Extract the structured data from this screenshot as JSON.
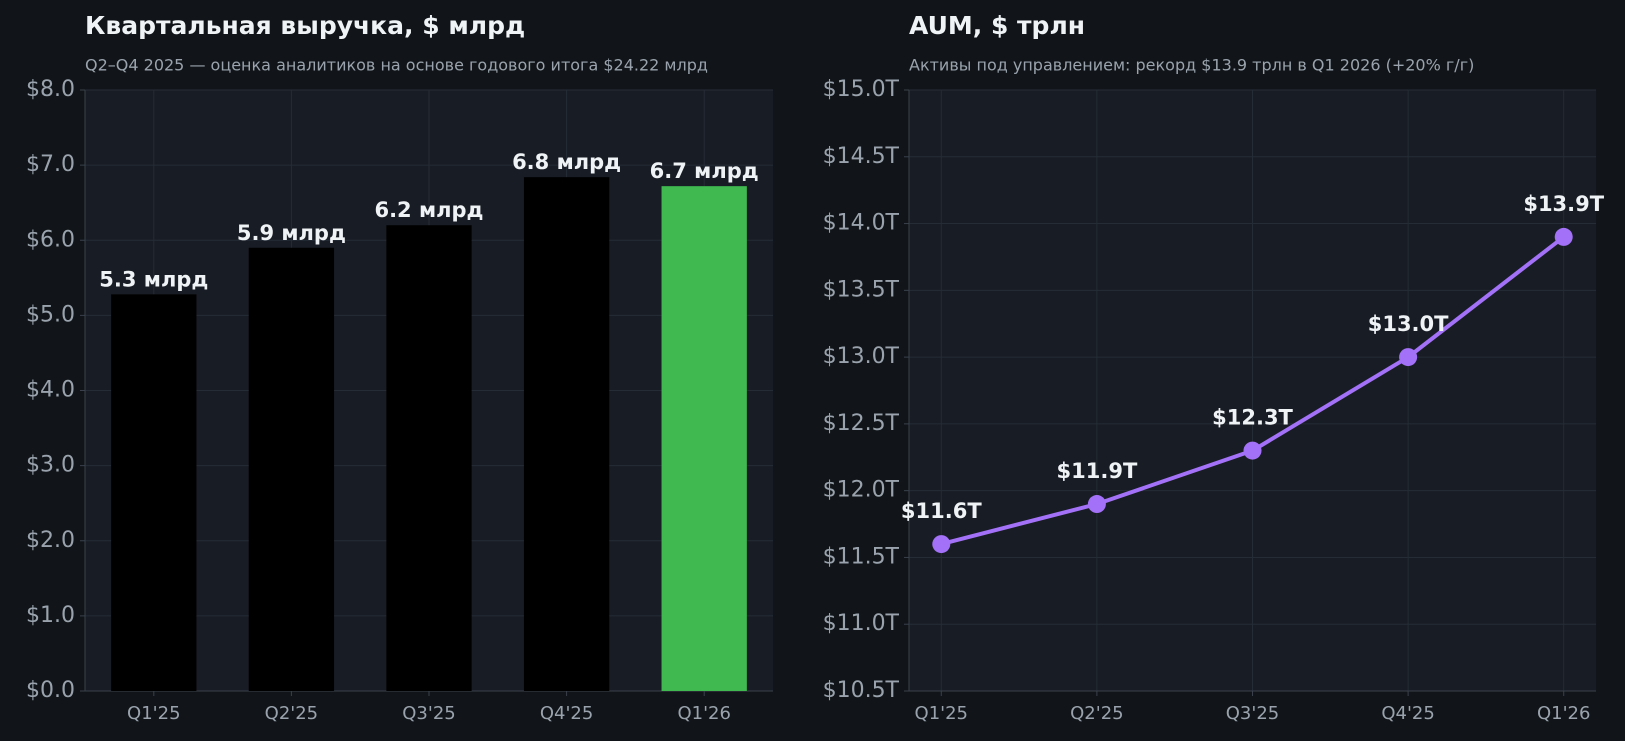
{
  "chart_data": [
    {
      "type": "bar",
      "title": "Квартальная выручка, $ млрд",
      "subtitle": "Q2–Q4 2025 — оценка аналитиков на основе годового итога $24.22 млрд",
      "categories": [
        "Q1'25",
        "Q2'25",
        "Q3'25",
        "Q4'25",
        "Q1'26"
      ],
      "values": [
        5.28,
        5.9,
        6.2,
        6.84,
        6.72
      ],
      "value_labels": [
        "5.3 млрд",
        "5.9 млрд",
        "6.2 млрд",
        "6.8 млрд",
        "6.7 млрд"
      ],
      "colors": [
        "#000000",
        "#000000",
        "#000000",
        "#000000",
        "#3fb950"
      ],
      "ylim": [
        0,
        8
      ],
      "yticks": [
        {
          "value": 0,
          "label": "$0.0"
        },
        {
          "value": 1,
          "label": "$1.0"
        },
        {
          "value": 2,
          "label": "$2.0"
        },
        {
          "value": 3,
          "label": "$3.0"
        },
        {
          "value": 4,
          "label": "$4.0"
        },
        {
          "value": 5,
          "label": "$5.0"
        },
        {
          "value": 6,
          "label": "$6.0"
        },
        {
          "value": 7,
          "label": "$7.0"
        },
        {
          "value": 8,
          "label": "$8.0"
        }
      ],
      "grid": true
    },
    {
      "type": "line",
      "title": "AUM, $ трлн",
      "subtitle": "Активы под управлением: рекорд $13.9 трлн в Q1 2026 (+20% г/г)",
      "categories": [
        "Q1'25",
        "Q2'25",
        "Q3'25",
        "Q4'25",
        "Q1'26"
      ],
      "values": [
        11.6,
        11.9,
        12.3,
        13.0,
        13.9
      ],
      "value_labels": [
        "$11.6T",
        "$11.9T",
        "$12.3T",
        "$13.0T",
        "$13.9T"
      ],
      "color": "#a371f7",
      "ylim": [
        10.5,
        15
      ],
      "yticks": [
        {
          "value": 10.5,
          "label": "$10.5T"
        },
        {
          "value": 11,
          "label": "$11.0T"
        },
        {
          "value": 11.5,
          "label": "$11.5T"
        },
        {
          "value": 12,
          "label": "$12.0T"
        },
        {
          "value": 12.5,
          "label": "$12.5T"
        },
        {
          "value": 13,
          "label": "$13.0T"
        },
        {
          "value": 13.5,
          "label": "$13.5T"
        },
        {
          "value": 14,
          "label": "$14.0T"
        },
        {
          "value": 14.5,
          "label": "$14.5T"
        },
        {
          "value": 15,
          "label": "$15.0T"
        }
      ],
      "grid": true
    }
  ]
}
